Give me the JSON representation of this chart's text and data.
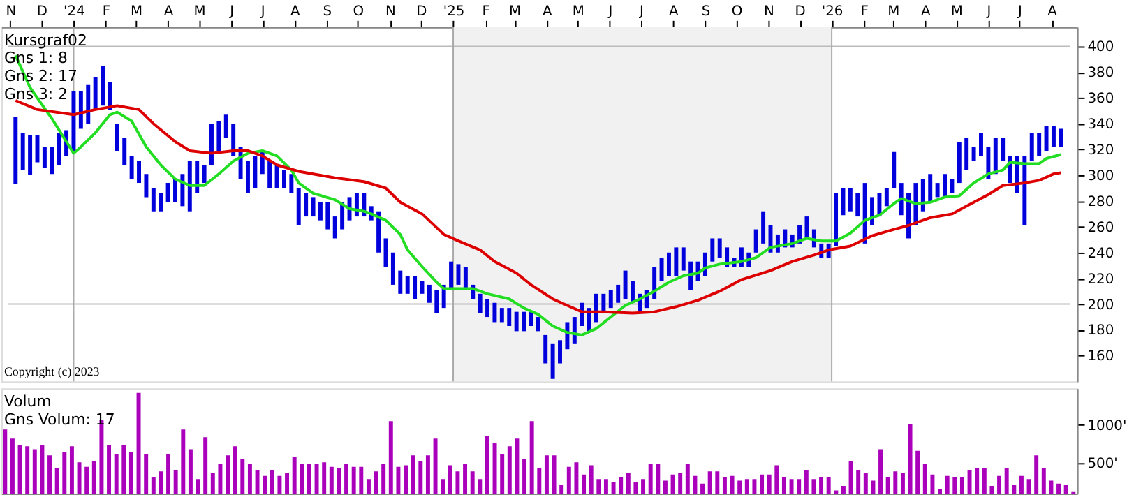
{
  "chart_data": [
    {
      "type": "bar",
      "xlim": [
        "2023-10-30",
        "2026-08-19"
      ],
      "ylim": [
        140,
        415
      ],
      "xticks": [
        {
          "value": "2023-11-01",
          "label": "N"
        },
        {
          "value": "2023-12-01",
          "label": "D"
        },
        {
          "value": "2024-01-01",
          "label": "'24"
        },
        {
          "value": "2024-02-01",
          "label": "F"
        },
        {
          "value": "2024-03-01",
          "label": "M"
        },
        {
          "value": "2024-04-01",
          "label": "A"
        },
        {
          "value": "2024-05-01",
          "label": "M"
        },
        {
          "value": "2024-06-01",
          "label": "J"
        },
        {
          "value": "2024-07-01",
          "label": "J"
        },
        {
          "value": "2024-08-01",
          "label": "A"
        },
        {
          "value": "2024-09-01",
          "label": "S"
        },
        {
          "value": "2024-10-01",
          "label": "O"
        },
        {
          "value": "2024-11-01",
          "label": "N"
        },
        {
          "value": "2024-12-01",
          "label": "D"
        },
        {
          "value": "2025-01-01",
          "label": "'25"
        },
        {
          "value": "2025-02-01",
          "label": "F"
        },
        {
          "value": "2025-03-01",
          "label": "M"
        },
        {
          "value": "2025-04-01",
          "label": "A"
        },
        {
          "value": "2025-05-01",
          "label": "M"
        },
        {
          "value": "2025-06-01",
          "label": "J"
        },
        {
          "value": "2025-07-01",
          "label": "J"
        },
        {
          "value": "2025-08-01",
          "label": "A"
        },
        {
          "value": "2025-09-01",
          "label": "S"
        },
        {
          "value": "2025-10-01",
          "label": "O"
        },
        {
          "value": "2025-11-01",
          "label": "N"
        },
        {
          "value": "2025-12-01",
          "label": "D"
        },
        {
          "value": "2026-01-01",
          "label": "'26"
        },
        {
          "value": "2026-02-01",
          "label": "F"
        },
        {
          "value": "2026-03-01",
          "label": "M"
        },
        {
          "value": "2026-04-01",
          "label": "A"
        },
        {
          "value": "2026-05-01",
          "label": "M"
        },
        {
          "value": "2026-06-01",
          "label": "J"
        },
        {
          "value": "2026-07-01",
          "label": "J"
        },
        {
          "value": "2026-08-01",
          "label": "A"
        }
      ],
      "yticks": [
        160,
        180,
        200,
        220,
        240,
        260,
        280,
        300,
        320,
        340,
        360,
        380,
        400
      ],
      "x": [
        "2023-11-06",
        "2023-11-13",
        "2023-11-20",
        "2023-11-27",
        "2023-12-04",
        "2023-12-11",
        "2023-12-18",
        "2023-12-25",
        "2024-01-01",
        "2024-01-08",
        "2024-01-15",
        "2024-01-22",
        "2024-01-29",
        "2024-02-05",
        "2024-02-12",
        "2024-02-19",
        "2024-02-26",
        "2024-03-04",
        "2024-03-11",
        "2024-03-18",
        "2024-03-25",
        "2024-04-01",
        "2024-04-08",
        "2024-04-15",
        "2024-04-22",
        "2024-04-29",
        "2024-05-06",
        "2024-05-13",
        "2024-05-20",
        "2024-05-27",
        "2024-06-03",
        "2024-06-10",
        "2024-06-17",
        "2024-06-24",
        "2024-07-01",
        "2024-07-08",
        "2024-07-15",
        "2024-07-22",
        "2024-07-29",
        "2024-08-05",
        "2024-08-12",
        "2024-08-19",
        "2024-08-26",
        "2024-09-02",
        "2024-09-09",
        "2024-09-16",
        "2024-09-23",
        "2024-09-30",
        "2024-10-07",
        "2024-10-14",
        "2024-10-21",
        "2024-10-28",
        "2024-11-04",
        "2024-11-11",
        "2024-11-18",
        "2024-11-25",
        "2024-12-02",
        "2024-12-09",
        "2024-12-16",
        "2024-12-23",
        "2024-12-30",
        "2025-01-06",
        "2025-01-13",
        "2025-01-20",
        "2025-01-27",
        "2025-02-03",
        "2025-02-10",
        "2025-02-17",
        "2025-02-24",
        "2025-03-03",
        "2025-03-10",
        "2025-03-17",
        "2025-03-24",
        "2025-03-31",
        "2025-04-07",
        "2025-04-14",
        "2025-04-21",
        "2025-04-28",
        "2025-05-05",
        "2025-05-12",
        "2025-05-19",
        "2025-05-26",
        "2025-06-02",
        "2025-06-09",
        "2025-06-16",
        "2025-06-23",
        "2025-06-30",
        "2025-07-07",
        "2025-07-14",
        "2025-07-21",
        "2025-07-28",
        "2025-08-04",
        "2025-08-11",
        "2025-08-18",
        "2025-08-25",
        "2025-09-01",
        "2025-09-08",
        "2025-09-15",
        "2025-09-22",
        "2025-09-29",
        "2025-10-06",
        "2025-10-13",
        "2025-10-20",
        "2025-10-27",
        "2025-11-03",
        "2025-11-10",
        "2025-11-17",
        "2025-11-24",
        "2025-12-01",
        "2025-12-08",
        "2025-12-15",
        "2025-12-22",
        "2025-12-29",
        "2026-01-05",
        "2026-01-12",
        "2026-01-19",
        "2026-01-26",
        "2026-02-02",
        "2026-02-09",
        "2026-02-16",
        "2026-02-23",
        "2026-03-02",
        "2026-03-09",
        "2026-03-16",
        "2026-03-23",
        "2026-03-30",
        "2026-04-06",
        "2026-04-13",
        "2026-04-20",
        "2026-04-27",
        "2026-05-04",
        "2026-05-11",
        "2026-05-18",
        "2026-05-25",
        "2026-06-01",
        "2026-06-08",
        "2026-06-15",
        "2026-06-22",
        "2026-06-29",
        "2026-07-06",
        "2026-07-13",
        "2026-07-20",
        "2026-07-27",
        "2026-08-03",
        "2026-08-10"
      ],
      "series": [
        {
          "type": "bar",
          "color": "#0000dd",
          "base": [
            293,
            304,
            300,
            310,
            306,
            301,
            308,
            315,
            319,
            336,
            340,
            351,
            354,
            351,
            319,
            308,
            297,
            294,
            283,
            272,
            272,
            279,
            279,
            276,
            272,
            286,
            294,
            308,
            319,
            329,
            315,
            297,
            286,
            290,
            301,
            290,
            290,
            290,
            286,
            261,
            268,
            268,
            265,
            258,
            251,
            258,
            265,
            268,
            268,
            265,
            240,
            229,
            215,
            208,
            208,
            204,
            208,
            201,
            193,
            197,
            211,
            215,
            211,
            204,
            193,
            190,
            186,
            186,
            183,
            179,
            179,
            183,
            179,
            154,
            142,
            154,
            165,
            169,
            183,
            179,
            186,
            193,
            197,
            201,
            204,
            201,
            193,
            197,
            204,
            218,
            222,
            222,
            226,
            211,
            218,
            222,
            233,
            236,
            229,
            229,
            229,
            229,
            240,
            247,
            240,
            240,
            244,
            244,
            247,
            251,
            244,
            236,
            236,
            245,
            269,
            272,
            268,
            247,
            261,
            268,
            276,
            290,
            269,
            251,
            261,
            272,
            279,
            283,
            283,
            286,
            294,
            304,
            311,
            315,
            297,
            301,
            311,
            294,
            286,
            261,
            311,
            315,
            319,
            322,
            322
          ],
          "values": [
            52,
            29,
            31,
            21,
            16,
            21,
            25,
            20,
            46,
            29,
            30,
            25,
            31,
            21,
            21,
            21,
            18,
            17,
            18,
            18,
            14,
            15,
            18,
            25,
            39,
            25,
            14,
            32,
            23,
            18,
            25,
            25,
            25,
            25,
            17,
            21,
            18,
            14,
            15,
            29,
            18,
            15,
            14,
            21,
            17,
            21,
            18,
            18,
            18,
            11,
            32,
            22,
            25,
            18,
            14,
            18,
            10,
            14,
            18,
            18,
            22,
            16,
            18,
            11,
            15,
            14,
            15,
            11,
            14,
            15,
            15,
            11,
            11,
            22,
            27,
            18,
            21,
            21,
            18,
            18,
            22,
            15,
            14,
            14,
            22,
            17,
            15,
            14,
            25,
            18,
            18,
            22,
            18,
            22,
            15,
            18,
            18,
            15,
            15,
            7,
            15,
            11,
            18,
            25,
            21,
            14,
            14,
            10,
            14,
            17,
            14,
            11,
            11,
            41,
            21,
            18,
            18,
            47,
            22,
            18,
            14,
            28,
            25,
            35,
            33,
            25,
            22,
            11,
            18,
            11,
            32,
            25,
            11,
            18,
            25,
            28,
            18,
            21,
            29,
            54,
            22,
            18,
            19,
            16,
            14
          ]
        },
        {
          "type": "line",
          "color": "#22dd22",
          "x": [
            "2023-11-06",
            "2023-11-20",
            "2023-12-11",
            "2023-12-25",
            "2024-01-01",
            "2024-01-08",
            "2024-01-22",
            "2024-01-29",
            "2024-02-05",
            "2024-02-12",
            "2024-02-26",
            "2024-03-11",
            "2024-03-25",
            "2024-04-08",
            "2024-04-22",
            "2024-05-06",
            "2024-05-20",
            "2024-06-03",
            "2024-06-17",
            "2024-07-01",
            "2024-07-15",
            "2024-07-29",
            "2024-08-05",
            "2024-08-19",
            "2024-09-09",
            "2024-09-23",
            "2024-10-07",
            "2024-10-14",
            "2024-10-28",
            "2024-11-11",
            "2024-11-18",
            "2024-12-02",
            "2024-12-16",
            "2024-12-23",
            "2025-01-20",
            "2025-02-03",
            "2025-02-24",
            "2025-03-10",
            "2025-03-24",
            "2025-04-07",
            "2025-04-21",
            "2025-05-05",
            "2025-05-19",
            "2025-06-02",
            "2025-06-16",
            "2025-06-30",
            "2025-07-14",
            "2025-07-28",
            "2025-08-11",
            "2025-08-25",
            "2025-09-01",
            "2025-09-15",
            "2025-10-06",
            "2025-10-20",
            "2025-11-03",
            "2025-11-24",
            "2025-12-08",
            "2025-12-22",
            "2026-01-05",
            "2026-01-19",
            "2026-02-02",
            "2026-02-16",
            "2026-03-02",
            "2026-03-09",
            "2026-03-23",
            "2026-04-06",
            "2026-04-20",
            "2026-05-04",
            "2026-05-18",
            "2026-06-01",
            "2026-06-15",
            "2026-06-22",
            "2026-07-06",
            "2026-07-20",
            "2026-07-27",
            "2026-08-10"
          ],
          "values": [
            393,
            368,
            344,
            326,
            317,
            322,
            333,
            340,
            347,
            349,
            342,
            322,
            308,
            297,
            292,
            292,
            301,
            311,
            317,
            319,
            315,
            304,
            294,
            286,
            281,
            274,
            272,
            270,
            265,
            254,
            242,
            229,
            217,
            212,
            212,
            208,
            204,
            197,
            192,
            183,
            178,
            176,
            181,
            190,
            199,
            204,
            210,
            217,
            222,
            224,
            228,
            231,
            233,
            236,
            244,
            247,
            251,
            249,
            249,
            255,
            265,
            269,
            278,
            282,
            278,
            279,
            283,
            284,
            294,
            301,
            304,
            310,
            309,
            309,
            313,
            316
          ]
        },
        {
          "type": "line",
          "color": "#dd0000",
          "x": [
            "2023-11-06",
            "2023-11-27",
            "2024-01-01",
            "2024-01-22",
            "2024-02-12",
            "2024-03-04",
            "2024-03-18",
            "2024-04-08",
            "2024-04-22",
            "2024-05-13",
            "2024-06-03",
            "2024-06-17",
            "2024-07-01",
            "2024-07-15",
            "2024-08-05",
            "2024-08-19",
            "2024-09-09",
            "2024-10-07",
            "2024-10-28",
            "2024-11-11",
            "2024-12-02",
            "2024-12-23",
            "2025-01-06",
            "2025-01-27",
            "2025-02-10",
            "2025-03-03",
            "2025-03-17",
            "2025-04-07",
            "2025-04-21",
            "2025-05-05",
            "2025-05-26",
            "2025-06-23",
            "2025-07-14",
            "2025-08-04",
            "2025-08-25",
            "2025-09-15",
            "2025-10-06",
            "2025-11-03",
            "2025-11-24",
            "2025-12-15",
            "2025-12-29",
            "2026-01-19",
            "2026-02-09",
            "2026-03-02",
            "2026-03-16",
            "2026-04-06",
            "2026-04-27",
            "2026-05-11",
            "2026-06-01",
            "2026-06-15",
            "2026-07-06",
            "2026-07-20",
            "2026-08-03",
            "2026-08-10"
          ],
          "values": [
            358,
            351,
            347,
            351,
            354,
            351,
            340,
            326,
            319,
            317,
            319,
            319,
            315,
            308,
            303,
            301,
            298,
            295,
            290,
            279,
            270,
            254,
            249,
            242,
            233,
            224,
            215,
            204,
            199,
            194,
            194,
            193,
            194,
            198,
            203,
            210,
            219,
            226,
            233,
            238,
            242,
            245,
            253,
            258,
            261,
            267,
            270,
            276,
            285,
            292,
            294,
            296,
            301,
            302
          ]
        }
      ],
      "ref_lines": [
        {
          "axis": "y",
          "value": 200,
          "color": "#bbbbbb"
        },
        {
          "axis": "y",
          "value": 400,
          "color": "#bbbbbb"
        },
        {
          "axis": "x",
          "value": "2024-01-01",
          "color": "#aaaaaa"
        },
        {
          "axis": "x",
          "value": "2025-01-01",
          "color": "#aaaaaa"
        },
        {
          "axis": "x",
          "value": "2026-01-01",
          "color": "#aaaaaa"
        }
      ],
      "bands": [
        {
          "axis": "x",
          "from": "2025-01-01",
          "to": "2026-01-01",
          "color": "#f1f1f1"
        }
      ],
      "annotations": [
        "Kursgraf02",
        "Gns 1: 8",
        "Gns 2: 17",
        "Gns 3: 2",
        "Copyright (c) 2023"
      ]
    },
    {
      "type": "bar",
      "ylim": [
        100,
        1480
      ],
      "tick_labels": "y",
      "categories": [
        null,
        null,
        null,
        null,
        null,
        null,
        null,
        null,
        null,
        null,
        null,
        null,
        null,
        null,
        null,
        null,
        null,
        null,
        null,
        null,
        null,
        null,
        null,
        null,
        null,
        null,
        null,
        null,
        null,
        null,
        null,
        null,
        null,
        null,
        null,
        null,
        null,
        null,
        null,
        null,
        null,
        null,
        null,
        null,
        null,
        null,
        null,
        null,
        null,
        null,
        null,
        null,
        null,
        null,
        null,
        null,
        null,
        null,
        null,
        null,
        null,
        null,
        null,
        null,
        null,
        null,
        null,
        null,
        null,
        null,
        null,
        null,
        null,
        null,
        null,
        null,
        null,
        null,
        null,
        null,
        null,
        null,
        null,
        null,
        null,
        null,
        null,
        null,
        null,
        null,
        null,
        null,
        null,
        null,
        null,
        null,
        null,
        null,
        null,
        null,
        null,
        null,
        null,
        null,
        null,
        null,
        null,
        null,
        null,
        null,
        null,
        null,
        null,
        null,
        null,
        null,
        null,
        null,
        null,
        null,
        null,
        null,
        null,
        null,
        null,
        null,
        null,
        null,
        null,
        null,
        null,
        null,
        null,
        null,
        null,
        null,
        null,
        null,
        null,
        null,
        null,
        null,
        null,
        null,
        null
      ],
      "yticks": [
        {
          "value": 500,
          "label": "500'"
        },
        {
          "value": 1000,
          "label": "1000'"
        }
      ],
      "color": "#aa00bb",
      "values": [
        940,
        820,
        740,
        720,
        680,
        740,
        600,
        430,
        640,
        720,
        510,
        450,
        530,
        1070,
        740,
        620,
        740,
        640,
        1420,
        620,
        310,
        390,
        620,
        410,
        940,
        680,
        290,
        840,
        370,
        490,
        600,
        720,
        550,
        490,
        410,
        330,
        410,
        330,
        370,
        580,
        490,
        490,
        490,
        510,
        450,
        430,
        490,
        450,
        450,
        290,
        390,
        490,
        1050,
        450,
        470,
        600,
        530,
        600,
        820,
        290,
        470,
        390,
        490,
        390,
        290,
        860,
        760,
        620,
        720,
        820,
        550,
        1050,
        430,
        600,
        600,
        210,
        450,
        510,
        350,
        470,
        290,
        290,
        250,
        310,
        370,
        250,
        290,
        490,
        490,
        270,
        350,
        370,
        490,
        330,
        230,
        390,
        390,
        310,
        330,
        270,
        290,
        290,
        350,
        350,
        470,
        310,
        290,
        290,
        410,
        290,
        310,
        310,
        140,
        200,
        530,
        410,
        370,
        270,
        680,
        310,
        390,
        370,
        1010,
        660,
        490,
        350,
        160,
        330,
        310,
        310,
        410,
        430,
        430,
        200,
        330,
        430,
        210,
        330,
        290,
        600,
        430,
        270,
        230,
        210,
        120
      ],
      "annotations": [
        "Volum",
        "Gns Volum: 17"
      ]
    }
  ]
}
